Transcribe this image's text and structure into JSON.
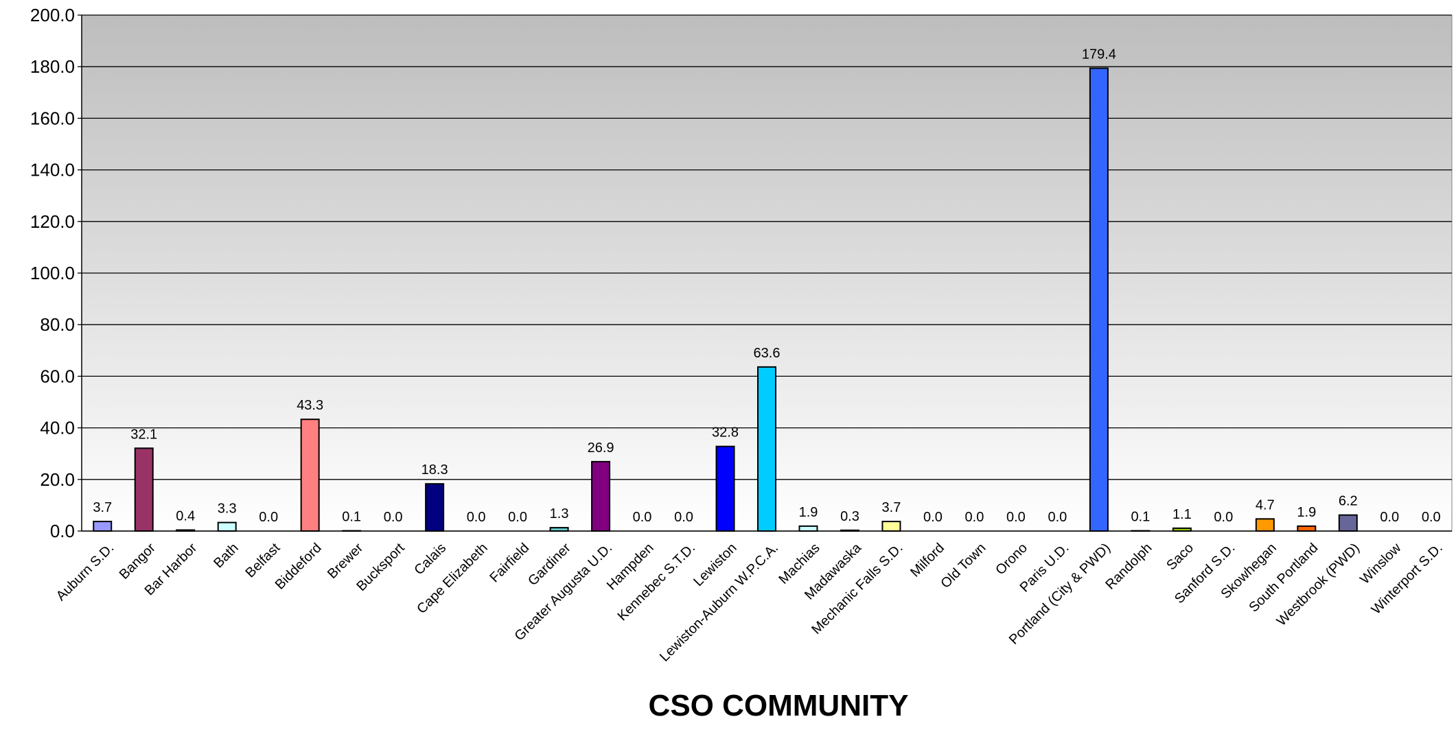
{
  "chart_data": {
    "type": "bar",
    "x_label": "CSO COMMUNITY",
    "categories": [
      "Auburn S.D.",
      "Bangor",
      "Bar Harbor",
      "Bath",
      "Belfast",
      "Biddeford",
      "Brewer",
      "Bucksport",
      "Calais",
      "Cape Elizabeth",
      "Fairfield",
      "Gardiner",
      "Greater Augusta U.D.",
      "Hampden",
      "Kennebec S.T.D.",
      "Lewiston",
      "Lewiston-Auburn W.P.C.A.",
      "Machias",
      "Madawaska",
      "Mechanic Falls S.D.",
      "Milford",
      "Old Town",
      "Orono",
      "Paris U.D.",
      "Portland (City & PWD)",
      "Randolph",
      "Saco",
      "Sanford S.D.",
      "Skowhegan",
      "South Portland",
      "Westbrook (PWD)",
      "Winslow",
      "Winterport S.D."
    ],
    "values": [
      3.7,
      32.1,
      0.4,
      3.3,
      0.0,
      43.3,
      0.1,
      0.0,
      18.3,
      0.0,
      0.0,
      1.3,
      26.9,
      0.0,
      0.0,
      32.8,
      63.6,
      1.9,
      0.3,
      3.7,
      0.0,
      0.0,
      0.0,
      0.0,
      179.4,
      0.1,
      1.1,
      0.0,
      4.7,
      1.9,
      6.2,
      0.0,
      0.0
    ],
    "value_labels": [
      "3.7",
      "32.1",
      "0.4",
      "3.3",
      "0.0",
      "43.3",
      "0.1",
      "0.0",
      "18.3",
      "0.0",
      "0.0",
      "1.3",
      "26.9",
      "0.0",
      "0.0",
      "32.8",
      "63.6",
      "1.9",
      "0.3",
      "3.7",
      "0.0",
      "0.0",
      "0.0",
      "0.0",
      "179.4",
      "0.1",
      "1.1",
      "0.0",
      "4.7",
      "1.9",
      "6.2",
      "0.0",
      "0.0"
    ],
    "colors": [
      "#9999ff",
      "#993366",
      "#ffffcc",
      "#ccffff",
      "#660066",
      "#ff8080",
      "#0066cc",
      "#ccccff",
      "#000080",
      "#ff00ff",
      "#ffff00",
      "#66cccc",
      "#800080",
      "#800000",
      "#008080",
      "#0000ff",
      "#00ccff",
      "#ccffff",
      "#ccffcc",
      "#ffff99",
      "#99ccff",
      "#ff99cc",
      "#cc99ff",
      "#ffcc99",
      "#3366ff",
      "#33cccc",
      "#99cc00",
      "#ffcc00",
      "#ff9900",
      "#ff6600",
      "#666699",
      "#969696",
      "#003366"
    ],
    "ylim": [
      0,
      200
    ],
    "yticks": [
      {
        "value": 0,
        "label": "0.0"
      },
      {
        "value": 20,
        "label": "20.0"
      },
      {
        "value": 40,
        "label": "40.0"
      },
      {
        "value": 60,
        "label": "60.0"
      },
      {
        "value": 80,
        "label": "80.0"
      },
      {
        "value": 100,
        "label": "100.0"
      },
      {
        "value": 120,
        "label": "120.0"
      },
      {
        "value": 140,
        "label": "140.0"
      },
      {
        "value": 160,
        "label": "160.0"
      },
      {
        "value": 180,
        "label": "180.0"
      },
      {
        "value": 200,
        "label": "200.0"
      }
    ],
    "grid": true
  }
}
